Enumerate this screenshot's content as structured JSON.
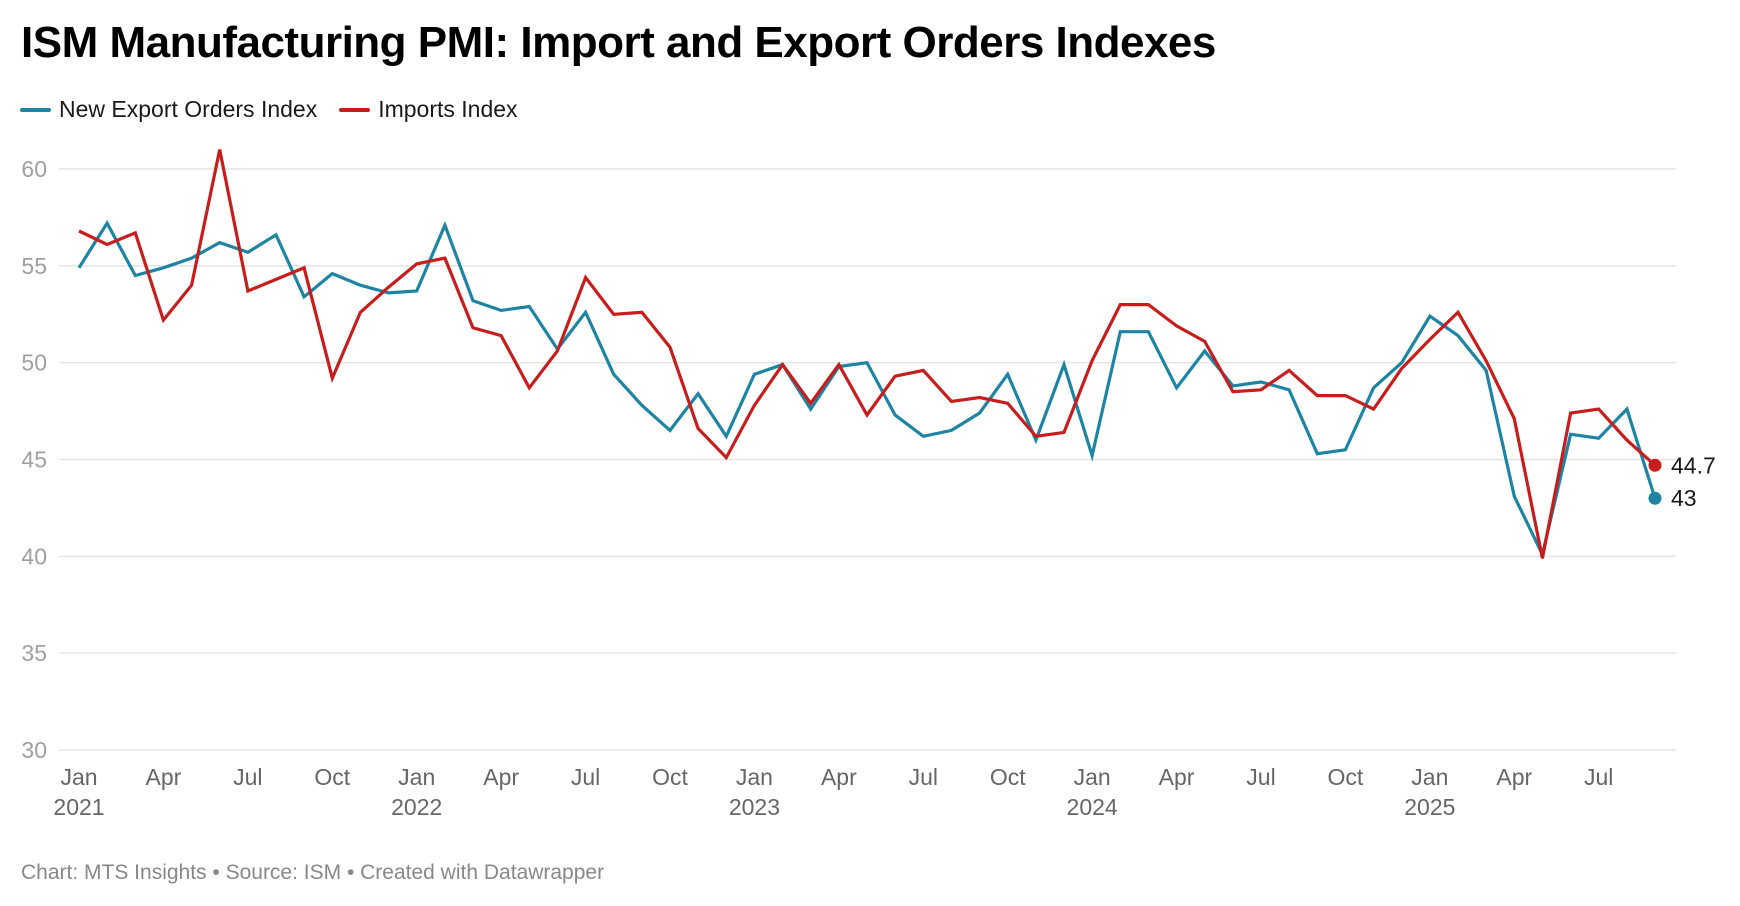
{
  "chart_data": {
    "type": "line",
    "title": "ISM Manufacturing PMI: Import and Export Orders Indexes",
    "xlabel": "",
    "ylabel": "",
    "ylim": [
      30,
      60
    ],
    "yticks": [
      30,
      35,
      40,
      45,
      50,
      55,
      60
    ],
    "grid": true,
    "legend_position": "top-left",
    "x_start": "2021-01",
    "x": [
      "2021-01",
      "2021-02",
      "2021-03",
      "2021-04",
      "2021-05",
      "2021-06",
      "2021-07",
      "2021-08",
      "2021-09",
      "2021-10",
      "2021-11",
      "2021-12",
      "2022-01",
      "2022-02",
      "2022-03",
      "2022-04",
      "2022-05",
      "2022-06",
      "2022-07",
      "2022-08",
      "2022-09",
      "2022-10",
      "2022-11",
      "2022-12",
      "2023-01",
      "2023-02",
      "2023-03",
      "2023-04",
      "2023-05",
      "2023-06",
      "2023-07",
      "2023-08",
      "2023-09",
      "2023-10",
      "2023-11",
      "2023-12",
      "2024-01",
      "2024-02",
      "2024-03",
      "2024-04",
      "2024-05",
      "2024-06",
      "2024-07",
      "2024-08",
      "2024-09",
      "2024-10",
      "2024-11",
      "2024-12",
      "2025-01",
      "2025-02",
      "2025-03",
      "2025-04",
      "2025-05",
      "2025-06",
      "2025-07",
      "2025-08",
      "2025-09"
    ],
    "xticks": [
      {
        "index": 0,
        "month": "Jan",
        "year": "2021"
      },
      {
        "index": 3,
        "month": "Apr",
        "year": ""
      },
      {
        "index": 6,
        "month": "Jul",
        "year": ""
      },
      {
        "index": 9,
        "month": "Oct",
        "year": ""
      },
      {
        "index": 12,
        "month": "Jan",
        "year": "2022"
      },
      {
        "index": 15,
        "month": "Apr",
        "year": ""
      },
      {
        "index": 18,
        "month": "Jul",
        "year": ""
      },
      {
        "index": 21,
        "month": "Oct",
        "year": ""
      },
      {
        "index": 24,
        "month": "Jan",
        "year": "2023"
      },
      {
        "index": 27,
        "month": "Apr",
        "year": ""
      },
      {
        "index": 30,
        "month": "Jul",
        "year": ""
      },
      {
        "index": 33,
        "month": "Oct",
        "year": ""
      },
      {
        "index": 36,
        "month": "Jan",
        "year": "2024"
      },
      {
        "index": 39,
        "month": "Apr",
        "year": ""
      },
      {
        "index": 42,
        "month": "Jul",
        "year": ""
      },
      {
        "index": 45,
        "month": "Oct",
        "year": ""
      },
      {
        "index": 48,
        "month": "Jan",
        "year": "2025"
      },
      {
        "index": 51,
        "month": "Apr",
        "year": ""
      },
      {
        "index": 54,
        "month": "Jul",
        "year": ""
      }
    ],
    "series": [
      {
        "name": "New Export Orders Index",
        "color": "#1d84a4",
        "end_label": "43",
        "values": [
          54.9,
          57.2,
          54.5,
          54.9,
          55.4,
          56.2,
          55.7,
          56.6,
          53.4,
          54.6,
          54.0,
          53.6,
          53.7,
          57.1,
          53.2,
          52.7,
          52.9,
          50.7,
          52.6,
          49.4,
          47.8,
          46.5,
          48.4,
          46.2,
          49.4,
          49.9,
          47.6,
          49.8,
          50.0,
          47.3,
          46.2,
          46.5,
          47.4,
          49.4,
          46.0,
          49.9,
          45.2,
          51.6,
          51.6,
          48.7,
          50.6,
          48.8,
          49.0,
          48.6,
          45.3,
          45.5,
          48.7,
          50.0,
          52.4,
          51.4,
          49.6,
          43.1,
          40.1,
          46.3,
          46.1,
          47.6,
          43.0
        ]
      },
      {
        "name": "Imports Index",
        "color": "#c71e1d",
        "end_label": "44.7",
        "values": [
          56.8,
          56.1,
          56.7,
          52.2,
          54.0,
          61.0,
          53.7,
          54.3,
          54.9,
          49.2,
          52.6,
          53.9,
          55.1,
          55.4,
          51.8,
          51.4,
          48.7,
          50.6,
          54.4,
          52.5,
          52.6,
          50.8,
          46.6,
          45.1,
          47.8,
          49.9,
          47.9,
          49.9,
          47.3,
          49.3,
          49.6,
          48.0,
          48.2,
          47.9,
          46.2,
          46.4,
          50.1,
          53.0,
          53.0,
          51.9,
          51.1,
          48.5,
          48.6,
          49.6,
          48.3,
          48.3,
          47.6,
          49.7,
          51.2,
          52.6,
          50.1,
          47.1,
          39.9,
          47.4,
          47.6,
          46.0,
          44.7
        ]
      }
    ]
  },
  "header": {
    "title": "ISM Manufacturing PMI: Import and Export Orders Indexes"
  },
  "legend": {
    "items": [
      {
        "label": "New Export Orders Index",
        "color": "#1d84a4"
      },
      {
        "label": "Imports Index",
        "color": "#c71e1d"
      }
    ]
  },
  "footer": {
    "text": "Chart: MTS Insights • Source: ISM • Created with Datawrapper"
  }
}
